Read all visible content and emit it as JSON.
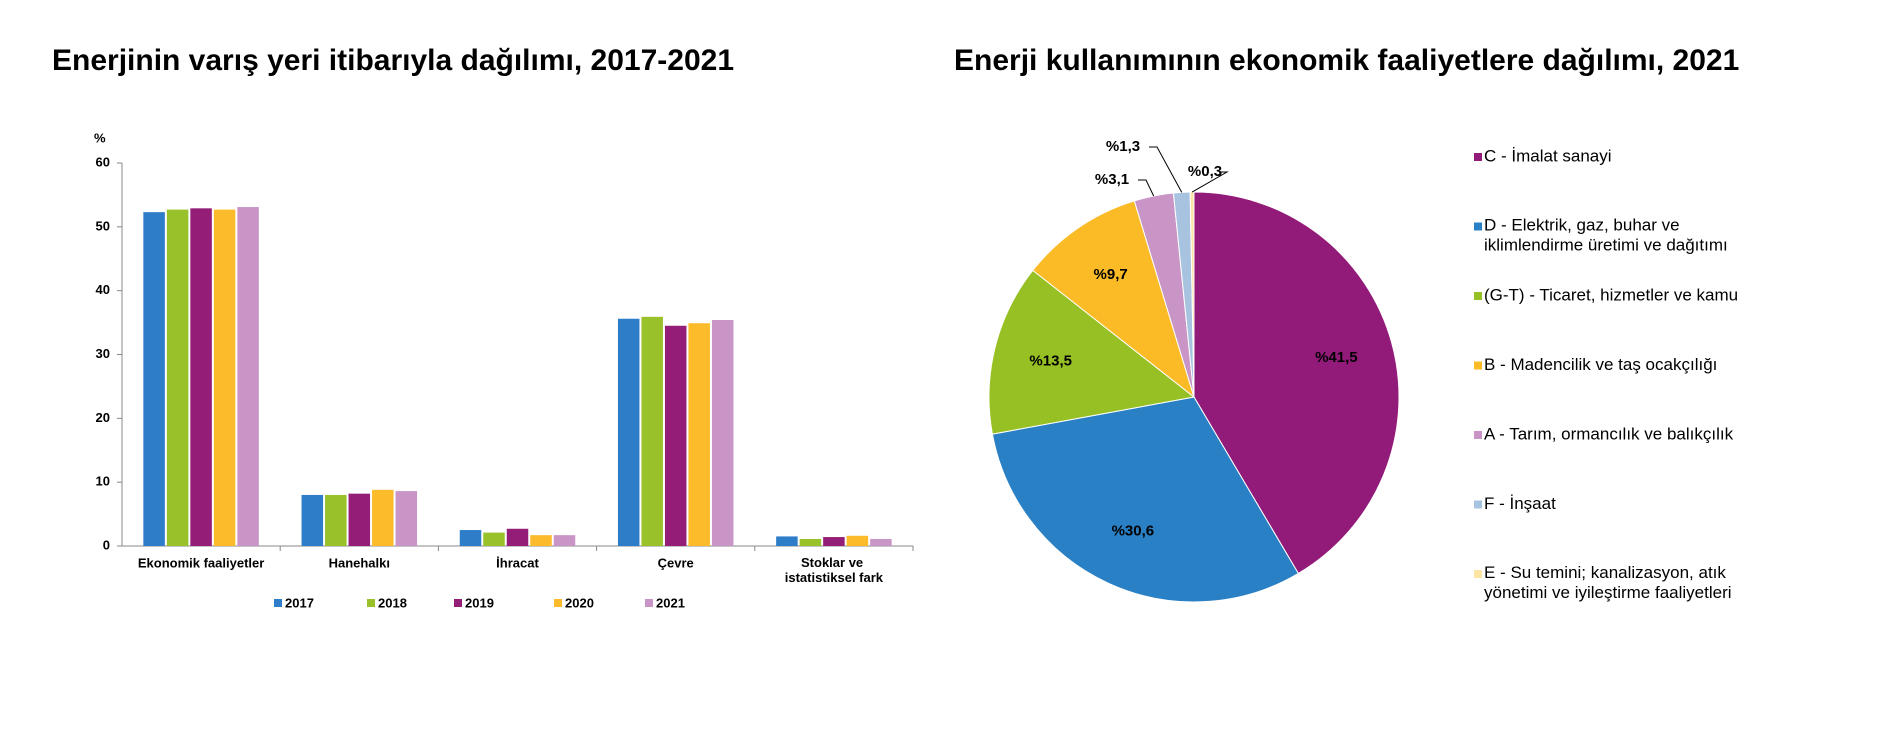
{
  "chart_data": [
    {
      "type": "bar",
      "title": "Enerjinin varış yeri itibarıyla dağılımı, 2017-2021",
      "y_label": "%",
      "categories": [
        "Ekonomik faaliyetler",
        "Hanehalkı",
        "İhracat",
        "Çevre",
        "Stoklar ve istatistiksel fark"
      ],
      "series": [
        {
          "name": "2017",
          "color": "#2e7dc8",
          "values": [
            52.3,
            8.0,
            2.5,
            35.6,
            1.5
          ]
        },
        {
          "name": "2018",
          "color": "#99c129",
          "values": [
            52.7,
            8.0,
            2.1,
            35.9,
            1.1
          ]
        },
        {
          "name": "2019",
          "color": "#941d77",
          "values": [
            52.9,
            8.2,
            2.7,
            34.5,
            1.4
          ]
        },
        {
          "name": "2020",
          "color": "#fbbb2b",
          "values": [
            52.7,
            8.8,
            1.7,
            34.9,
            1.6
          ]
        },
        {
          "name": "2021",
          "color": "#c994c6",
          "values": [
            53.1,
            8.6,
            1.7,
            35.4,
            1.1
          ]
        }
      ],
      "ylim": [
        0,
        60
      ],
      "yticks": [
        0,
        10,
        20,
        30,
        40,
        50,
        60
      ],
      "grid": false,
      "legend": "bottom"
    },
    {
      "type": "pie",
      "title": "Enerji kullanımının ekonomik faaliyetlere dağılımı, 2021",
      "categories": [
        "C - İmalat sanayi",
        "D - Elektrik, gaz, buhar ve iklimlendirme üretimi ve dağıtımı",
        "(G-T) - Ticaret, hizmetler ve kamu",
        "B - Madencilik ve taş ocakçılığı",
        "A - Tarım, ormancılık ve balıkçılık",
        "F - İnşaat",
        "E - Su temini; kanalizasyon, atık yönetimi ve iyileştirme faaliyetleri"
      ],
      "values": [
        41.5,
        30.6,
        13.5,
        9.7,
        3.1,
        1.3,
        0.3
      ],
      "value_labels": [
        "%41,5",
        "%30,6",
        "%13,5",
        "%9,7",
        "%3,1",
        "%1,3",
        "%0,3"
      ],
      "colors": [
        "#921a78",
        "#2a80c5",
        "#97c024",
        "#fbbb27",
        "#c895c6",
        "#a8c3e0",
        "#fde5a6"
      ],
      "legend": "right"
    }
  ]
}
